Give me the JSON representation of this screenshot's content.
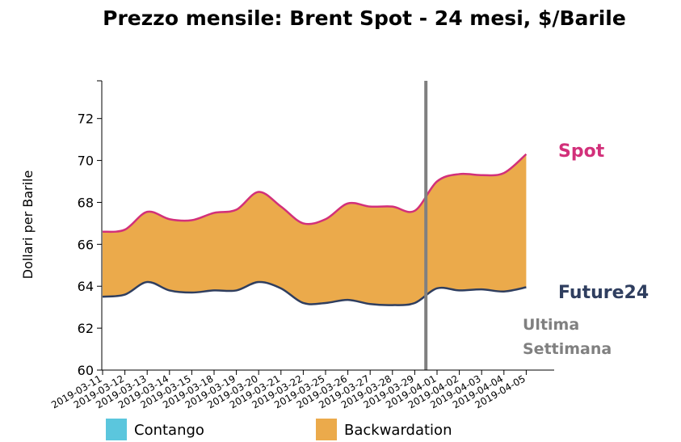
{
  "chart_data": {
    "type": "area",
    "title": "Prezzo mensile: Brent Spot - 24 mesi, $/Barile",
    "ylabel": "Dollari per Barile",
    "xlabel": "",
    "ylim": [
      60,
      73.8
    ],
    "yticks": [
      60,
      62,
      64,
      66,
      68,
      70,
      72
    ],
    "grid": false,
    "x": [
      "2019-03-11",
      "2019-03-12",
      "2019-03-13",
      "2019-03-14",
      "2019-03-15",
      "2019-03-18",
      "2019-03-19",
      "2019-03-20",
      "2019-03-21",
      "2019-03-22",
      "2019-03-25",
      "2019-03-26",
      "2019-03-27",
      "2019-03-28",
      "2019-03-29",
      "2019-04-01",
      "2019-04-02",
      "2019-04-03",
      "2019-04-04",
      "2019-04-05"
    ],
    "series": [
      {
        "name": "Spot",
        "color": "#d2307a",
        "values": [
          66.6,
          66.7,
          67.55,
          67.2,
          67.15,
          67.5,
          67.65,
          68.5,
          67.8,
          67.0,
          67.2,
          67.95,
          67.8,
          67.8,
          67.6,
          69.0,
          69.35,
          69.3,
          69.4,
          70.3
        ]
      },
      {
        "name": "Future24",
        "color": "#2f3e5f",
        "values": [
          63.5,
          63.6,
          64.2,
          63.8,
          63.7,
          63.8,
          63.8,
          64.2,
          63.9,
          63.2,
          63.2,
          63.35,
          63.15,
          63.1,
          63.2,
          63.9,
          63.8,
          63.85,
          63.75,
          63.95
        ]
      }
    ],
    "fill_between": {
      "color": "#ebaa4b"
    },
    "vertical_marker": {
      "after_index": 14,
      "label_lines": [
        "Ultima",
        "Settimana"
      ],
      "color": "#808080"
    },
    "legend": {
      "position": "bottom",
      "items": [
        {
          "label": "Contango",
          "color": "#5bc6dd"
        },
        {
          "label": "Backwardation",
          "color": "#ebaa4b"
        }
      ]
    }
  }
}
